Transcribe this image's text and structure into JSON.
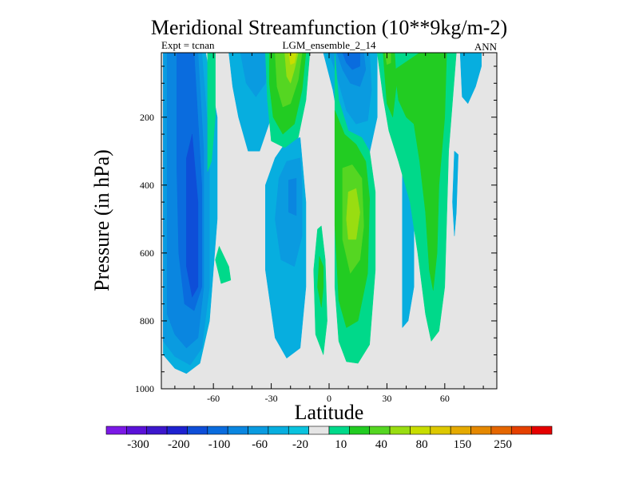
{
  "chart_data": {
    "type": "contour",
    "title": "Meridional Streamfunction (10**9kg/m-2)",
    "subtitle_left": "Expt = tcnan",
    "subtitle_center": "LGM_ensemble_2_14",
    "subtitle_right": "ANN",
    "xlabel": "Latitude",
    "ylabel": "Pressure (in hPa)",
    "xlim": [
      -87,
      87
    ],
    "ylim": [
      1000,
      10
    ],
    "xticks": [
      -60,
      -30,
      0,
      30,
      60
    ],
    "yticks": [
      200,
      400,
      600,
      800,
      1000
    ],
    "colorbar": {
      "labels": [
        "-300",
        "-200",
        "-100",
        "-60",
        "-20",
        "10",
        "40",
        "80",
        "150",
        "250"
      ],
      "colors": [
        "#7B19E6",
        "#5A12D8",
        "#3C17CC",
        "#1E22D0",
        "#0E4ED8",
        "#0A6CDE",
        "#0A86E0",
        "#0A9BE0",
        "#07AEDF",
        "#0AC3DE",
        "#E5E5E5",
        "#00D98A",
        "#22CC22",
        "#55D622",
        "#99DD11",
        "#C8DD00",
        "#DDC800",
        "#E5AA00",
        "#E58800",
        "#E56600",
        "#E54000",
        "#E50000"
      ]
    },
    "regions": [
      {
        "level": -20,
        "color": "#07AEDF",
        "poly": [
          [
            -86,
            10
          ],
          [
            -64,
            10
          ],
          [
            -58,
            200
          ],
          [
            -58,
            500
          ],
          [
            -62,
            800
          ],
          [
            -67,
            925
          ],
          [
            -74,
            955
          ],
          [
            -80,
            940
          ],
          [
            -86,
            900
          ]
        ]
      },
      {
        "level": -40,
        "color": "#0A9BE0",
        "poly": [
          [
            -86,
            10
          ],
          [
            -66,
            10
          ],
          [
            -62,
            300
          ],
          [
            -62,
            700
          ],
          [
            -66,
            880
          ],
          [
            -72,
            930
          ],
          [
            -80,
            905
          ],
          [
            -86,
            860
          ]
        ]
      },
      {
        "level": -60,
        "color": "#0A86E0",
        "poly": [
          [
            -84,
            10
          ],
          [
            -68,
            10
          ],
          [
            -65,
            300
          ],
          [
            -65,
            700
          ],
          [
            -68,
            850
          ],
          [
            -74,
            880
          ],
          [
            -80,
            840
          ],
          [
            -84,
            780
          ]
        ]
      },
      {
        "level": -80,
        "color": "#0A6CDE",
        "poly": [
          [
            -79,
            10
          ],
          [
            -70,
            10
          ],
          [
            -66,
            400
          ],
          [
            -66,
            700
          ],
          [
            -70,
            770
          ],
          [
            -75,
            750
          ],
          [
            -78,
            600
          ],
          [
            -79,
            350
          ]
        ]
      },
      {
        "level": -100,
        "color": "#0E4ED8",
        "poly": [
          [
            -74,
            320
          ],
          [
            -71,
            250
          ],
          [
            -68,
            450
          ],
          [
            -68,
            700
          ],
          [
            -71,
            730
          ],
          [
            -74,
            640
          ]
        ]
      },
      {
        "level": 20,
        "color": "#00D98A",
        "poly": [
          [
            -63,
            10
          ],
          [
            -59,
            10
          ],
          [
            -59,
            200
          ],
          [
            -61,
            330
          ],
          [
            -63,
            360
          ]
        ]
      },
      {
        "level": 20,
        "color": "#00D98A",
        "poly": [
          [
            -59,
            620
          ],
          [
            -56,
            690
          ],
          [
            -51,
            680
          ],
          [
            -52,
            640
          ],
          [
            -57,
            580
          ]
        ]
      },
      {
        "level": -20,
        "color": "#07AEDF",
        "poly": [
          [
            -52,
            10
          ],
          [
            -23,
            10
          ],
          [
            -26,
            100
          ],
          [
            -30,
            200
          ],
          [
            -36,
            300
          ],
          [
            -42,
            300
          ],
          [
            -47,
            200
          ],
          [
            -50,
            110
          ]
        ]
      },
      {
        "level": -40,
        "color": "#0A9BE0",
        "poly": [
          [
            -46,
            10
          ],
          [
            -31,
            10
          ],
          [
            -33,
            100
          ],
          [
            -38,
            140
          ],
          [
            -43,
            100
          ]
        ]
      },
      {
        "level": -20,
        "color": "#07AEDF",
        "poly": [
          [
            -15,
            260
          ],
          [
            -22,
            270
          ],
          [
            -28,
            320
          ],
          [
            -33,
            400
          ],
          [
            -33,
            650
          ],
          [
            -28,
            850
          ],
          [
            -22,
            910
          ],
          [
            -15,
            880
          ],
          [
            -12,
            700
          ],
          [
            -12,
            450
          ]
        ]
      },
      {
        "level": -40,
        "color": "#0A9BE0",
        "poly": [
          [
            -15,
            320
          ],
          [
            -22,
            330
          ],
          [
            -26,
            380
          ],
          [
            -28,
            500
          ],
          [
            -25,
            620
          ],
          [
            -18,
            640
          ],
          [
            -14,
            550
          ],
          [
            -14,
            400
          ]
        ]
      },
      {
        "level": -60,
        "color": "#0A86E0",
        "poly": [
          [
            -17,
            380
          ],
          [
            -21,
            385
          ],
          [
            -21,
            480
          ],
          [
            -17,
            490
          ]
        ]
      },
      {
        "level": 20,
        "color": "#00D98A",
        "poly": [
          [
            -33,
            10
          ],
          [
            -10,
            10
          ],
          [
            -12,
            150
          ],
          [
            -16,
            260
          ],
          [
            -23,
            290
          ],
          [
            -30,
            270
          ],
          [
            -32,
            150
          ]
        ]
      },
      {
        "level": 40,
        "color": "#22CC22",
        "poly": [
          [
            -31,
            10
          ],
          [
            -12,
            10
          ],
          [
            -14,
            120
          ],
          [
            -18,
            220
          ],
          [
            -24,
            250
          ],
          [
            -29,
            200
          ],
          [
            -31,
            100
          ]
        ]
      },
      {
        "level": 60,
        "color": "#55D622",
        "poly": [
          [
            -28,
            10
          ],
          [
            -14,
            10
          ],
          [
            -16,
            90
          ],
          [
            -20,
            160
          ],
          [
            -24,
            170
          ],
          [
            -27,
            110
          ]
        ]
      },
      {
        "level": 80,
        "color": "#99DD11",
        "poly": [
          [
            -23,
            10
          ],
          [
            -16,
            10
          ],
          [
            -18,
            60
          ],
          [
            -20,
            100
          ],
          [
            -22,
            80
          ]
        ]
      },
      {
        "level": 100,
        "color": "#C8DD00",
        "poly": [
          [
            -21,
            10
          ],
          [
            -17,
            10
          ],
          [
            -18,
            40
          ],
          [
            -20,
            45
          ]
        ]
      },
      {
        "level": 20,
        "color": "#00D98A",
        "poly": [
          [
            -6,
            530
          ],
          [
            -8,
            650
          ],
          [
            -7,
            840
          ],
          [
            -3,
            900
          ],
          [
            -1,
            800
          ],
          [
            -2,
            620
          ],
          [
            -4,
            520
          ]
        ]
      },
      {
        "level": 40,
        "color": "#22CC22",
        "poly": [
          [
            -5,
            610
          ],
          [
            -6,
            700
          ],
          [
            -4,
            760
          ],
          [
            -3,
            700
          ],
          [
            -3,
            640
          ]
        ]
      },
      {
        "level": -20,
        "color": "#07AEDF",
        "poly": [
          [
            -3,
            10
          ],
          [
            2,
            120
          ],
          [
            6,
            250
          ],
          [
            11,
            330
          ],
          [
            20,
            330
          ],
          [
            25,
            200
          ],
          [
            25,
            10
          ]
        ]
      },
      {
        "level": -40,
        "color": "#0A9BE0",
        "poly": [
          [
            0,
            10
          ],
          [
            4,
            80
          ],
          [
            9,
            180
          ],
          [
            14,
            220
          ],
          [
            20,
            210
          ],
          [
            22,
            120
          ],
          [
            21,
            10
          ]
        ]
      },
      {
        "level": -60,
        "color": "#0A86E0",
        "poly": [
          [
            4,
            10
          ],
          [
            7,
            60
          ],
          [
            11,
            100
          ],
          [
            16,
            110
          ],
          [
            19,
            60
          ],
          [
            18,
            10
          ]
        ]
      },
      {
        "level": -80,
        "color": "#0A6CDE",
        "poly": [
          [
            7,
            10
          ],
          [
            9,
            40
          ],
          [
            12,
            60
          ],
          [
            16,
            50
          ],
          [
            16,
            10
          ]
        ]
      },
      {
        "level": 20,
        "color": "#00D98A",
        "poly": [
          [
            3,
            10
          ],
          [
            5,
            150
          ],
          [
            10,
            240
          ],
          [
            17,
            260
          ],
          [
            21,
            300
          ],
          [
            24,
            420
          ],
          [
            24,
            650
          ],
          [
            21,
            870
          ],
          [
            15,
            925
          ],
          [
            9,
            920
          ],
          [
            5,
            860
          ],
          [
            3,
            700
          ],
          [
            3,
            400
          ]
        ]
      },
      {
        "level": 40,
        "color": "#22CC22",
        "poly": [
          [
            3,
            180
          ],
          [
            8,
            250
          ],
          [
            14,
            280
          ],
          [
            19,
            330
          ],
          [
            21,
            440
          ],
          [
            20,
            660
          ],
          [
            15,
            800
          ],
          [
            9,
            820
          ],
          [
            5,
            740
          ],
          [
            3,
            520
          ]
        ]
      },
      {
        "level": 60,
        "color": "#55D622",
        "poly": [
          [
            7,
            350
          ],
          [
            12,
            340
          ],
          [
            17,
            380
          ],
          [
            18,
            520
          ],
          [
            16,
            620
          ],
          [
            11,
            660
          ],
          [
            7,
            560
          ]
        ]
      },
      {
        "level": 80,
        "color": "#99DD11",
        "poly": [
          [
            10,
            420
          ],
          [
            14,
            410
          ],
          [
            16,
            480
          ],
          [
            14,
            560
          ],
          [
            10,
            560
          ],
          [
            9,
            500
          ]
        ]
      },
      {
        "level": -20,
        "color": "#07AEDF",
        "poly": [
          [
            38,
            360
          ],
          [
            44,
            360
          ],
          [
            44,
            700
          ],
          [
            41,
            800
          ],
          [
            38,
            820
          ],
          [
            38,
            600
          ]
        ]
      },
      {
        "level": 20,
        "color": "#00D98A",
        "poly": [
          [
            25,
            10
          ],
          [
            66,
            10
          ],
          [
            62,
            300
          ],
          [
            60,
            700
          ],
          [
            57,
            830
          ],
          [
            53,
            860
          ],
          [
            50,
            780
          ],
          [
            46,
            600
          ],
          [
            42,
            450
          ],
          [
            36,
            330
          ],
          [
            31,
            240
          ],
          [
            28,
            140
          ]
        ]
      },
      {
        "level": 40,
        "color": "#22CC22",
        "poly": [
          [
            28,
            10
          ],
          [
            34,
            10
          ],
          [
            35,
            100
          ],
          [
            33,
            200
          ],
          [
            30,
            160
          ]
        ]
      },
      {
        "level": 40,
        "color": "#22CC22",
        "poly": [
          [
            34,
            60
          ],
          [
            47,
            10
          ],
          [
            61,
            10
          ],
          [
            60,
            200
          ],
          [
            57,
            400
          ],
          [
            56,
            600
          ],
          [
            54,
            710
          ],
          [
            52,
            650
          ],
          [
            50,
            480
          ],
          [
            47,
            330
          ],
          [
            44,
            220
          ],
          [
            40,
            200
          ],
          [
            36,
            150
          ]
        ]
      },
      {
        "level": 60,
        "color": "#55D622",
        "poly": [
          [
            29,
            10
          ],
          [
            32,
            10
          ],
          [
            32,
            40
          ],
          [
            30,
            45
          ]
        ]
      },
      {
        "level": -20,
        "color": "#07AEDF",
        "poly": [
          [
            68,
            10
          ],
          [
            79,
            10
          ],
          [
            79,
            50
          ],
          [
            76,
            110
          ],
          [
            72,
            160
          ],
          [
            69,
            140
          ]
        ]
      },
      {
        "level": -20,
        "color": "#07AEDF",
        "poly": [
          [
            65,
            300
          ],
          [
            67,
            310
          ],
          [
            66,
            480
          ],
          [
            65,
            550
          ],
          [
            64,
            450
          ]
        ]
      }
    ]
  }
}
